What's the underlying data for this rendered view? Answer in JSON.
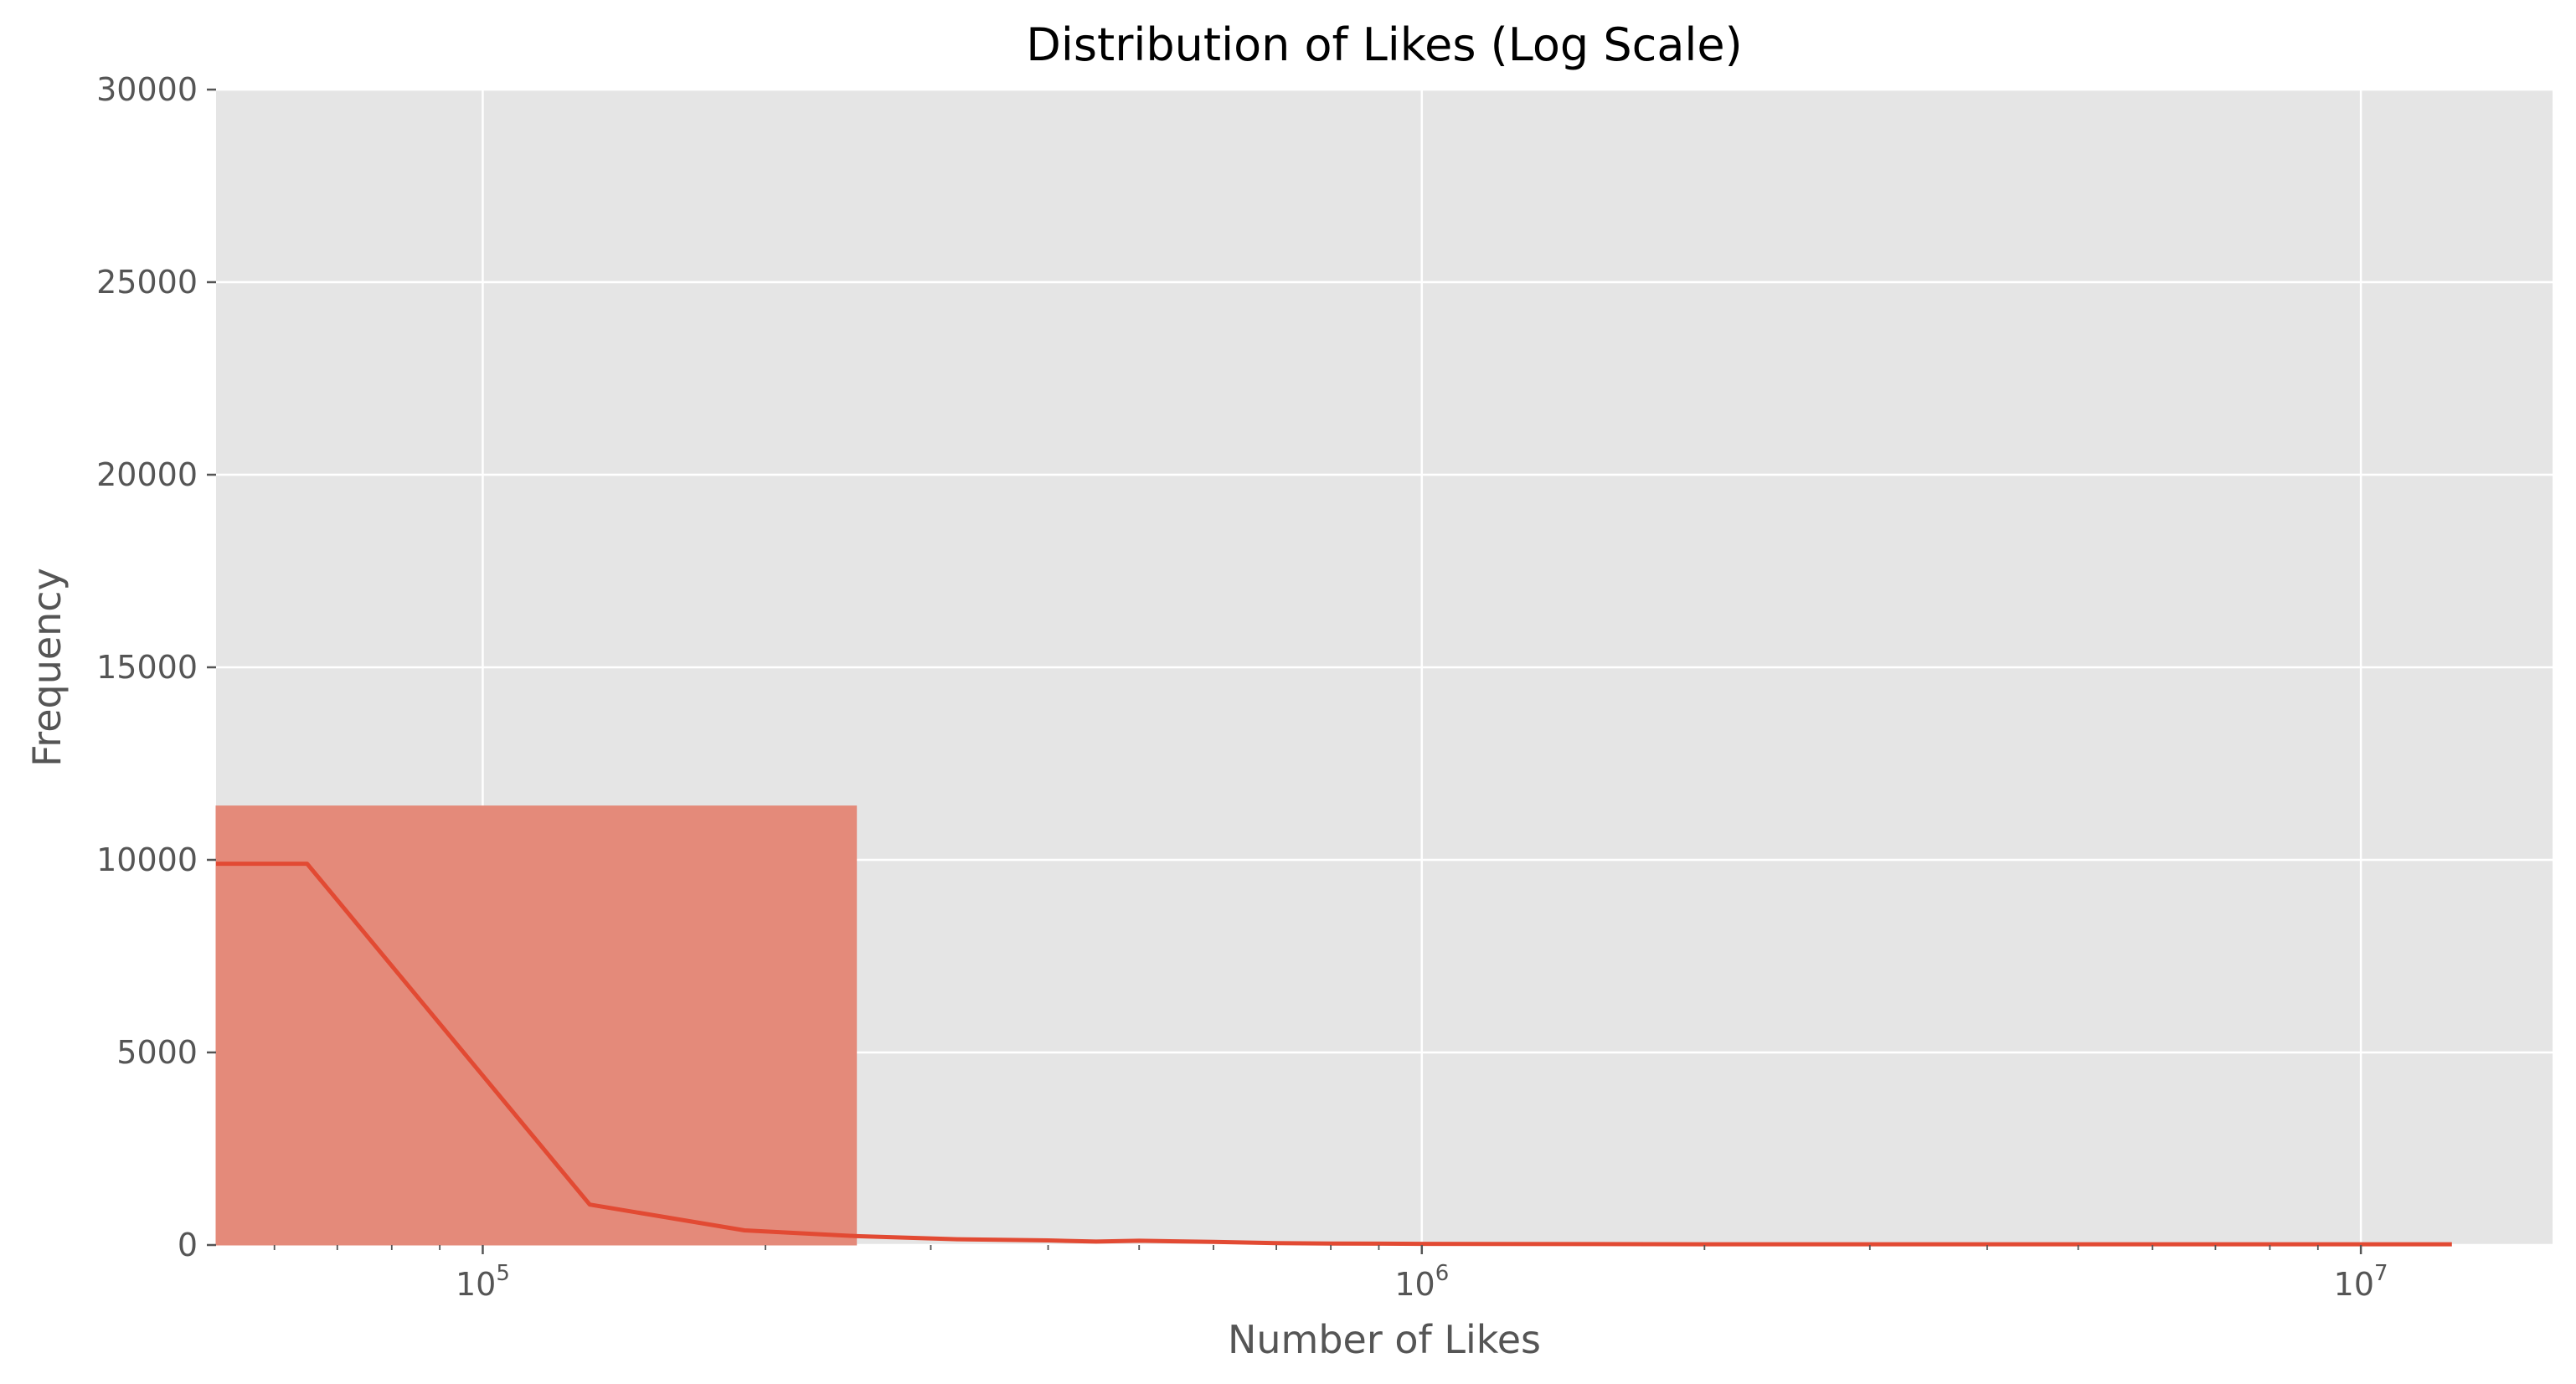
{
  "chart_data": {
    "type": "histogram",
    "title": "Distribution of Likes (Log Scale)",
    "xlabel": "Number of Likes",
    "ylabel": "Frequency",
    "xscale": "log",
    "xlim": [
      52000,
      16000000
    ],
    "ylim": [
      0,
      30000
    ],
    "grid": true,
    "legend": "none",
    "colors": {
      "background": "#e5e5e5",
      "grid": "#ffffff",
      "bar": "#e48a7a",
      "kde": "#e24a33",
      "tick": "#555555"
    },
    "y_ticks": [
      {
        "value": 0,
        "label": "0"
      },
      {
        "value": 5000,
        "label": "5000"
      },
      {
        "value": 10000,
        "label": "10000"
      },
      {
        "value": 15000,
        "label": "15000"
      },
      {
        "value": 20000,
        "label": "20000"
      },
      {
        "value": 25000,
        "label": "25000"
      },
      {
        "value": 30000,
        "label": "30000"
      }
    ],
    "x_ticks": [
      {
        "value": 100000,
        "base": "10",
        "exp": "5"
      },
      {
        "value": 1000000,
        "base": "10",
        "exp": "6"
      },
      {
        "value": 10000000,
        "base": "10",
        "exp": "7"
      }
    ],
    "bins": [
      {
        "x_start": 52000,
        "x_end": 250000,
        "count": 11400
      }
    ],
    "kde": {
      "x": [
        52000,
        65000,
        130000,
        190000,
        250000,
        320000,
        400000,
        450000,
        500000,
        600000,
        700000,
        800000,
        1000000,
        2000000,
        5000000,
        12500000
      ],
      "y": [
        9900,
        9900,
        1050,
        380,
        230,
        150,
        120,
        90,
        110,
        80,
        50,
        40,
        30,
        20,
        20,
        20
      ]
    }
  }
}
